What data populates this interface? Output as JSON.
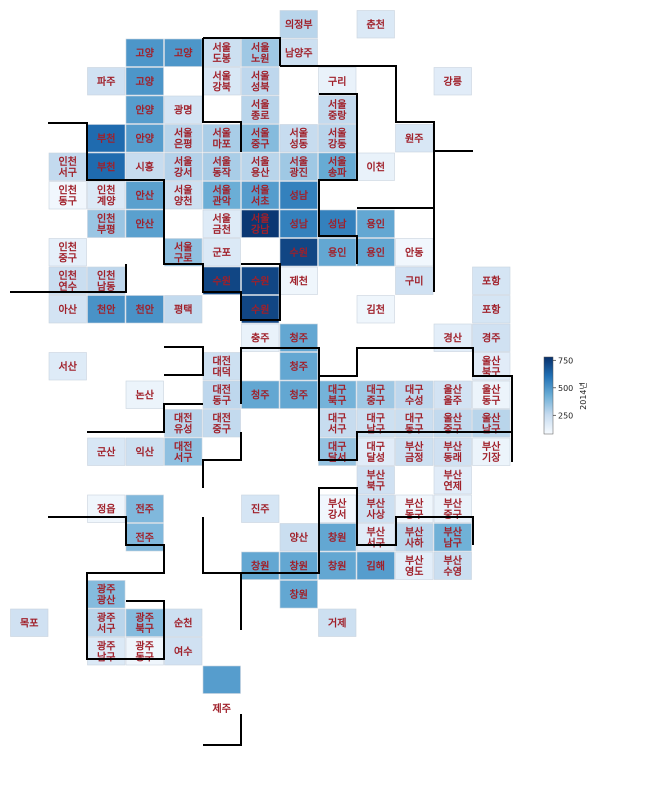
{
  "chart_data": {
    "type": "heatmap",
    "title": "",
    "colorbar": {
      "label": "2014년",
      "ticks": [
        250,
        500,
        750
      ],
      "min": 80,
      "max": 780,
      "colormap": "Blues"
    },
    "cells": [
      {
        "col": 7,
        "row": 0,
        "label": [
          "의정부"
        ],
        "value": 280
      },
      {
        "col": 9,
        "row": 0,
        "label": [
          "춘천"
        ],
        "value": 180
      },
      {
        "col": 3,
        "row": 1,
        "label": [
          "고양"
        ],
        "value": 500
      },
      {
        "col": 4,
        "row": 1,
        "label": [
          "고양"
        ],
        "value": 500
      },
      {
        "col": 5,
        "row": 1,
        "label": [
          "서울",
          "도봉"
        ],
        "value": 230
      },
      {
        "col": 6,
        "row": 1,
        "label": [
          "서울",
          "노원"
        ],
        "value": 330
      },
      {
        "col": 7,
        "row": 1,
        "label": [
          "남양주"
        ],
        "value": 230
      },
      {
        "col": 2,
        "row": 2,
        "label": [
          "파주"
        ],
        "value": 220
      },
      {
        "col": 3,
        "row": 2,
        "label": [
          "고양"
        ],
        "value": 500
      },
      {
        "col": 5,
        "row": 2,
        "label": [
          "서울",
          "강북"
        ],
        "value": 190
      },
      {
        "col": 6,
        "row": 2,
        "label": [
          "서울",
          "성북"
        ],
        "value": 270
      },
      {
        "col": 8,
        "row": 2,
        "label": [
          "구리"
        ],
        "value": 130
      },
      {
        "col": 11,
        "row": 2,
        "label": [
          "강릉"
        ],
        "value": 160
      },
      {
        "col": 3,
        "row": 3,
        "label": [
          "안양"
        ],
        "value": 480
      },
      {
        "col": 4,
        "row": 3,
        "label": [
          "광명"
        ],
        "value": 200
      },
      {
        "col": 6,
        "row": 3,
        "label": [
          "서울",
          "종로"
        ],
        "value": 280
      },
      {
        "col": 8,
        "row": 3,
        "label": [
          "서울",
          "중랑"
        ],
        "value": 260
      },
      {
        "col": 2,
        "row": 4,
        "label": [
          "부천"
        ],
        "value": 620
      },
      {
        "col": 3,
        "row": 4,
        "label": [
          "안양"
        ],
        "value": 480
      },
      {
        "col": 4,
        "row": 4,
        "label": [
          "서울",
          "은평"
        ],
        "value": 280
      },
      {
        "col": 5,
        "row": 4,
        "label": [
          "서울",
          "마포"
        ],
        "value": 310
      },
      {
        "col": 6,
        "row": 4,
        "label": [
          "서울",
          "중구"
        ],
        "value": 380
      },
      {
        "col": 7,
        "row": 4,
        "label": [
          "서울",
          "성동"
        ],
        "value": 250
      },
      {
        "col": 8,
        "row": 4,
        "label": [
          "서울",
          "강동"
        ],
        "value": 280
      },
      {
        "col": 10,
        "row": 4,
        "label": [
          "원주"
        ],
        "value": 190
      },
      {
        "col": 1,
        "row": 5,
        "label": [
          "인천",
          "서구"
        ],
        "value": 260
      },
      {
        "col": 2,
        "row": 5,
        "label": [
          "부천"
        ],
        "value": 620
      },
      {
        "col": 3,
        "row": 5,
        "label": [
          "시흥"
        ],
        "value": 250
      },
      {
        "col": 4,
        "row": 5,
        "label": [
          "서울",
          "강서"
        ],
        "value": 290
      },
      {
        "col": 5,
        "row": 5,
        "label": [
          "서울",
          "동작"
        ],
        "value": 310
      },
      {
        "col": 6,
        "row": 5,
        "label": [
          "서울",
          "용산"
        ],
        "value": 280
      },
      {
        "col": 7,
        "row": 5,
        "label": [
          "서울",
          "광진"
        ],
        "value": 330
      },
      {
        "col": 8,
        "row": 5,
        "label": [
          "서울",
          "송파"
        ],
        "value": 440
      },
      {
        "col": 9,
        "row": 5,
        "label": [
          "이천"
        ],
        "value": 130
      },
      {
        "col": 1,
        "row": 6,
        "label": [
          "인천",
          "동구"
        ],
        "value": 100
      },
      {
        "col": 2,
        "row": 6,
        "label": [
          "인천",
          "계양"
        ],
        "value": 180
      },
      {
        "col": 3,
        "row": 6,
        "label": [
          "안산"
        ],
        "value": 470
      },
      {
        "col": 4,
        "row": 6,
        "label": [
          "서울",
          "양천"
        ],
        "value": 230
      },
      {
        "col": 5,
        "row": 6,
        "label": [
          "서울",
          "관악"
        ],
        "value": 430
      },
      {
        "col": 6,
        "row": 6,
        "label": [
          "서울",
          "서초"
        ],
        "value": 480
      },
      {
        "col": 7,
        "row": 6,
        "label": [
          "성남"
        ],
        "value": 560
      },
      {
        "col": 2,
        "row": 7,
        "label": [
          "인천",
          "부평"
        ],
        "value": 340
      },
      {
        "col": 3,
        "row": 7,
        "label": [
          "안산"
        ],
        "value": 470
      },
      {
        "col": 5,
        "row": 7,
        "label": [
          "서울",
          "금천"
        ],
        "value": 170
      },
      {
        "col": 6,
        "row": 7,
        "label": [
          "서울",
          "강남"
        ],
        "value": 760
      },
      {
        "col": 7,
        "row": 7,
        "label": [
          "성남"
        ],
        "value": 560
      },
      {
        "col": 8,
        "row": 7,
        "label": [
          "성남"
        ],
        "value": 560
      },
      {
        "col": 9,
        "row": 7,
        "label": [
          "용인"
        ],
        "value": 450
      },
      {
        "col": 1,
        "row": 8,
        "label": [
          "인천",
          "중구"
        ],
        "value": 140
      },
      {
        "col": 4,
        "row": 8,
        "label": [
          "서울",
          "구로"
        ],
        "value": 360
      },
      {
        "col": 5,
        "row": 8,
        "label": [
          "군포"
        ],
        "value": 180
      },
      {
        "col": 7,
        "row": 8,
        "label": [
          "수원"
        ],
        "value": 720
      },
      {
        "col": 8,
        "row": 8,
        "label": [
          "용인"
        ],
        "value": 450
      },
      {
        "col": 9,
        "row": 8,
        "label": [
          "용인"
        ],
        "value": 450
      },
      {
        "col": 10,
        "row": 8,
        "label": [
          "안동"
        ],
        "value": 100
      },
      {
        "col": 1,
        "row": 9,
        "label": [
          "인천",
          "연수"
        ],
        "value": 240
      },
      {
        "col": 2,
        "row": 9,
        "label": [
          "인천",
          "남동"
        ],
        "value": 270
      },
      {
        "col": 5,
        "row": 9,
        "label": [
          "수원"
        ],
        "value": 720
      },
      {
        "col": 6,
        "row": 9,
        "label": [
          "수원"
        ],
        "value": 720
      },
      {
        "col": 7,
        "row": 9,
        "label": [
          "제천"
        ],
        "value": 110
      },
      {
        "col": 10,
        "row": 9,
        "label": [
          "구미"
        ],
        "value": 220
      },
      {
        "col": 12,
        "row": 9,
        "label": [
          "포항"
        ],
        "value": 200
      },
      {
        "col": 1,
        "row": 10,
        "label": [
          "아산"
        ],
        "value": 210
      },
      {
        "col": 2,
        "row": 10,
        "label": [
          "천안"
        ],
        "value": 510
      },
      {
        "col": 3,
        "row": 10,
        "label": [
          "천안"
        ],
        "value": 510
      },
      {
        "col": 4,
        "row": 10,
        "label": [
          "평택"
        ],
        "value": 260
      },
      {
        "col": 6,
        "row": 10,
        "label": [
          "수원"
        ],
        "value": 720
      },
      {
        "col": 9,
        "row": 10,
        "label": [
          "김천"
        ],
        "value": 110
      },
      {
        "col": 12,
        "row": 10,
        "label": [
          "포항"
        ],
        "value": 200
      },
      {
        "col": 6,
        "row": 11,
        "label": [
          "충주"
        ],
        "value": 130
      },
      {
        "col": 7,
        "row": 11,
        "label": [
          "청주"
        ],
        "value": 450
      },
      {
        "col": 11,
        "row": 11,
        "label": [
          "경산"
        ],
        "value": 150
      },
      {
        "col": 12,
        "row": 11,
        "label": [
          "경주"
        ],
        "value": 220
      },
      {
        "col": 1,
        "row": 12,
        "label": [
          "서산"
        ],
        "value": 170
      },
      {
        "col": 5,
        "row": 12,
        "label": [
          "대전",
          "대덕"
        ],
        "value": 230
      },
      {
        "col": 7,
        "row": 12,
        "label": [
          "청주"
        ],
        "value": 450
      },
      {
        "col": 12,
        "row": 12,
        "label": [
          "울산",
          "북구"
        ],
        "value": 160
      },
      {
        "col": 3,
        "row": 13,
        "label": [
          "논산"
        ],
        "value": 120
      },
      {
        "col": 5,
        "row": 13,
        "label": [
          "대전",
          "동구"
        ],
        "value": 270
      },
      {
        "col": 6,
        "row": 13,
        "label": [
          "청주"
        ],
        "value": 450
      },
      {
        "col": 7,
        "row": 13,
        "label": [
          "청주"
        ],
        "value": 450
      },
      {
        "col": 8,
        "row": 13,
        "label": [
          "대구",
          "북구"
        ],
        "value": 410
      },
      {
        "col": 9,
        "row": 13,
        "label": [
          "대구",
          "중구"
        ],
        "value": 330
      },
      {
        "col": 10,
        "row": 13,
        "label": [
          "대구",
          "수성"
        ],
        "value": 270
      },
      {
        "col": 11,
        "row": 13,
        "label": [
          "울산",
          "울주"
        ],
        "value": 210
      },
      {
        "col": 12,
        "row": 13,
        "label": [
          "울산",
          "동구"
        ],
        "value": 120
      },
      {
        "col": 4,
        "row": 14,
        "label": [
          "대전",
          "유성"
        ],
        "value": 280
      },
      {
        "col": 5,
        "row": 14,
        "label": [
          "대전",
          "중구"
        ],
        "value": 260
      },
      {
        "col": 8,
        "row": 14,
        "label": [
          "대구",
          "서구"
        ],
        "value": 250
      },
      {
        "col": 9,
        "row": 14,
        "label": [
          "대구",
          "남구"
        ],
        "value": 230
      },
      {
        "col": 10,
        "row": 14,
        "label": [
          "대구",
          "동구"
        ],
        "value": 240
      },
      {
        "col": 11,
        "row": 14,
        "label": [
          "울산",
          "중구"
        ],
        "value": 260
      },
      {
        "col": 12,
        "row": 14,
        "label": [
          "울산",
          "남구"
        ],
        "value": 280
      },
      {
        "col": 2,
        "row": 15,
        "label": [
          "군산"
        ],
        "value": 190
      },
      {
        "col": 3,
        "row": 15,
        "label": [
          "익산"
        ],
        "value": 230
      },
      {
        "col": 4,
        "row": 15,
        "label": [
          "대전",
          "서구"
        ],
        "value": 360
      },
      {
        "col": 8,
        "row": 15,
        "label": [
          "대구",
          "달서"
        ],
        "value": 350
      },
      {
        "col": 9,
        "row": 15,
        "label": [
          "대구",
          "달성"
        ],
        "value": 160
      },
      {
        "col": 10,
        "row": 15,
        "label": [
          "부산",
          "금정"
        ],
        "value": 230
      },
      {
        "col": 11,
        "row": 15,
        "label": [
          "부산",
          "동래"
        ],
        "value": 220
      },
      {
        "col": 12,
        "row": 15,
        "label": [
          "부산",
          "기장"
        ],
        "value": 120
      },
      {
        "col": 9,
        "row": 16,
        "label": [
          "부산",
          "북구"
        ],
        "value": 220
      },
      {
        "col": 11,
        "row": 16,
        "label": [
          "부산",
          "연제"
        ],
        "value": 160
      },
      {
        "col": 2,
        "row": 17,
        "label": [
          "정읍"
        ],
        "value": 110
      },
      {
        "col": 3,
        "row": 17,
        "label": [
          "전주"
        ],
        "value": 390
      },
      {
        "col": 6,
        "row": 17,
        "label": [
          "진주"
        ],
        "value": 200
      },
      {
        "col": 8,
        "row": 17,
        "label": [
          "부산",
          "강서"
        ],
        "value": 100
      },
      {
        "col": 9,
        "row": 17,
        "label": [
          "부산",
          "사상"
        ],
        "value": 230
      },
      {
        "col": 10,
        "row": 17,
        "label": [
          "부산",
          "동구"
        ],
        "value": 110
      },
      {
        "col": 11,
        "row": 17,
        "label": [
          "부산",
          "중구"
        ],
        "value": 130
      },
      {
        "col": 3,
        "row": 18,
        "label": [
          "전주"
        ],
        "value": 390
      },
      {
        "col": 7,
        "row": 18,
        "label": [
          "양산"
        ],
        "value": 240
      },
      {
        "col": 8,
        "row": 18,
        "label": [
          "창원"
        ],
        "value": 450
      },
      {
        "col": 9,
        "row": 18,
        "label": [
          "부산",
          "서구"
        ],
        "value": 160
      },
      {
        "col": 10,
        "row": 18,
        "label": [
          "부산",
          "사하"
        ],
        "value": 280
      },
      {
        "col": 11,
        "row": 18,
        "label": [
          "부산",
          "남구"
        ],
        "value": 420
      },
      {
        "col": 6,
        "row": 19,
        "label": [
          "창원"
        ],
        "value": 450
      },
      {
        "col": 7,
        "row": 19,
        "label": [
          "창원"
        ],
        "value": 450
      },
      {
        "col": 8,
        "row": 19,
        "label": [
          "창원"
        ],
        "value": 450
      },
      {
        "col": 9,
        "row": 19,
        "label": [
          "김해"
        ],
        "value": 480
      },
      {
        "col": 10,
        "row": 19,
        "label": [
          "부산",
          "영도"
        ],
        "value": 150
      },
      {
        "col": 11,
        "row": 19,
        "label": [
          "부산",
          "수영"
        ],
        "value": 240
      },
      {
        "col": 2,
        "row": 20,
        "label": [
          "광주",
          "광산"
        ],
        "value": 380
      },
      {
        "col": 7,
        "row": 20,
        "label": [
          "창원"
        ],
        "value": 450
      },
      {
        "col": 0,
        "row": 21,
        "label": [
          "목포"
        ],
        "value": 220
      },
      {
        "col": 2,
        "row": 21,
        "label": [
          "광주",
          "서구"
        ],
        "value": 280
      },
      {
        "col": 3,
        "row": 21,
        "label": [
          "광주",
          "북구"
        ],
        "value": 380
      },
      {
        "col": 4,
        "row": 21,
        "label": [
          "순천"
        ],
        "value": 230
      },
      {
        "col": 8,
        "row": 21,
        "label": [
          "거제"
        ],
        "value": 230
      },
      {
        "col": 2,
        "row": 22,
        "label": [
          "광주",
          "남구"
        ],
        "value": 180
      },
      {
        "col": 3,
        "row": 22,
        "label": [
          "광주",
          "동구"
        ],
        "value": 110
      },
      {
        "col": 4,
        "row": 22,
        "label": [
          "여수"
        ],
        "value": 220
      },
      {
        "col": 5,
        "row": 23,
        "label": [
          ""
        ],
        "value": 480
      },
      {
        "col": 5,
        "row": 24,
        "label": [
          "제주"
        ],
        "value": 0
      }
    ]
  }
}
